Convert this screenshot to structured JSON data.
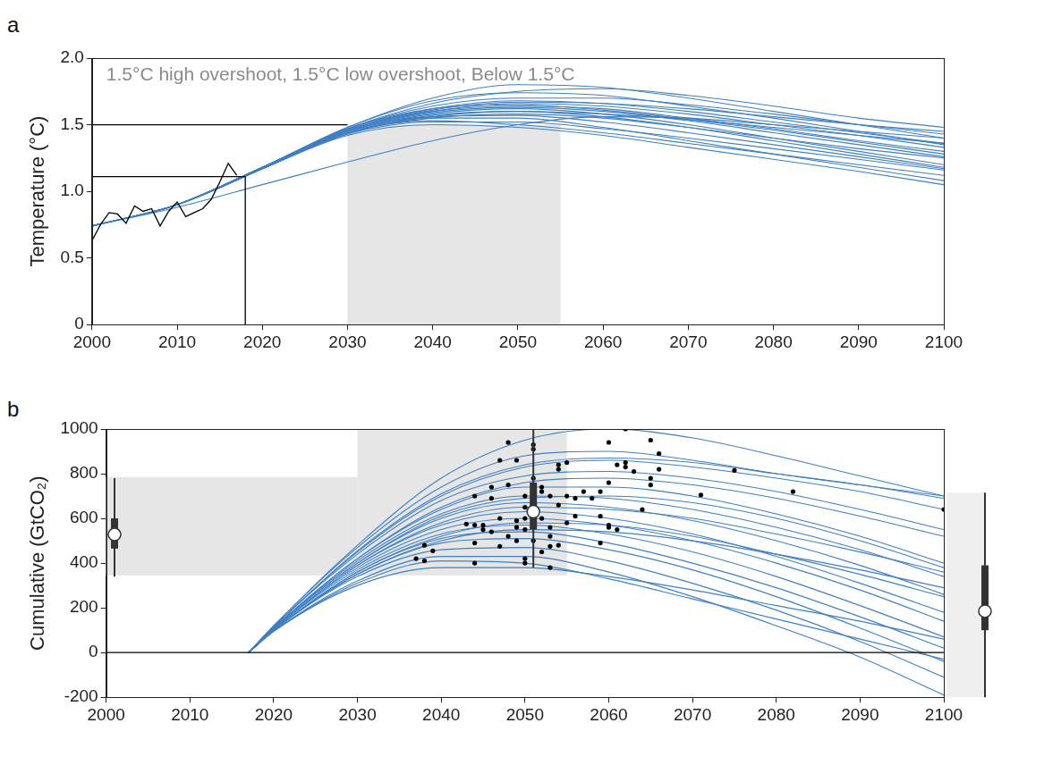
{
  "chart_data": [
    {
      "panel": "a",
      "type": "line",
      "annotation": "1.5°C high overshoot, 1.5°C low overshoot, Below 1.5°C",
      "y_label": "Temperature (°C)",
      "xlim": [
        2000,
        2100
      ],
      "xticks": [
        2000,
        2010,
        2020,
        2030,
        2040,
        2050,
        2060,
        2070,
        2080,
        2090,
        2100
      ],
      "ylim": [
        0,
        2
      ],
      "yticks": [
        0,
        0.5,
        {
          "value": 1,
          "label": "1.0"
        },
        1.5,
        {
          "value": 2,
          "label": "2.0"
        }
      ],
      "grid": false,
      "color": "#3f7fc2",
      "bands": [
        {
          "x": [
            2030,
            2055
          ],
          "y": [
            0,
            1.5
          ]
        }
      ],
      "x": [
        2000,
        2010,
        2020,
        2030,
        2040,
        2050,
        2060,
        2070,
        2080,
        2090,
        2100
      ],
      "series": [
        {
          "values": [
            0.74,
            0.9,
            1.18,
            1.48,
            1.7,
            1.8,
            1.78,
            1.7,
            1.6,
            1.5,
            1.4
          ]
        },
        {
          "values": [
            0.74,
            0.9,
            1.18,
            1.47,
            1.66,
            1.75,
            1.77,
            1.72,
            1.64,
            1.55,
            1.48
          ]
        },
        {
          "values": [
            0.74,
            0.9,
            1.18,
            1.46,
            1.62,
            1.68,
            1.66,
            1.6,
            1.52,
            1.44,
            1.36
          ]
        },
        {
          "values": [
            0.74,
            0.9,
            1.18,
            1.46,
            1.6,
            1.64,
            1.62,
            1.55,
            1.47,
            1.38,
            1.3
          ]
        },
        {
          "values": [
            0.74,
            0.9,
            1.17,
            1.45,
            1.58,
            1.62,
            1.58,
            1.5,
            1.4,
            1.3,
            1.2
          ]
        },
        {
          "values": [
            0.74,
            0.9,
            1.17,
            1.44,
            1.55,
            1.58,
            1.55,
            1.48,
            1.4,
            1.32,
            1.25
          ]
        },
        {
          "values": [
            0.74,
            0.9,
            1.17,
            1.43,
            1.52,
            1.52,
            1.47,
            1.4,
            1.32,
            1.24,
            1.16
          ]
        },
        {
          "values": [
            0.74,
            0.9,
            1.17,
            1.42,
            1.5,
            1.48,
            1.42,
            1.33,
            1.24,
            1.15,
            1.05
          ]
        },
        {
          "values": [
            0.74,
            0.9,
            1.17,
            1.43,
            1.55,
            1.55,
            1.48,
            1.38,
            1.28,
            1.18,
            1.08
          ]
        },
        {
          "values": [
            0.74,
            0.9,
            1.18,
            1.47,
            1.64,
            1.7,
            1.7,
            1.65,
            1.58,
            1.5,
            1.43
          ]
        },
        {
          "values": [
            0.74,
            0.9,
            1.18,
            1.46,
            1.6,
            1.66,
            1.64,
            1.58,
            1.5,
            1.42,
            1.33
          ]
        },
        {
          "values": [
            0.74,
            0.9,
            1.17,
            1.45,
            1.57,
            1.6,
            1.56,
            1.48,
            1.38,
            1.28,
            1.18
          ]
        },
        {
          "values": [
            0.74,
            0.9,
            1.18,
            1.48,
            1.68,
            1.74,
            1.72,
            1.64,
            1.55,
            1.45,
            1.35
          ]
        },
        {
          "values": [
            0.74,
            0.9,
            1.17,
            1.44,
            1.56,
            1.6,
            1.58,
            1.54,
            1.48,
            1.42,
            1.36
          ]
        },
        {
          "values": [
            0.74,
            0.9,
            1.17,
            1.45,
            1.59,
            1.63,
            1.6,
            1.53,
            1.44,
            1.35,
            1.26
          ]
        },
        {
          "values": [
            0.74,
            0.88,
            1.05,
            1.22,
            1.38,
            1.5,
            1.56,
            1.55,
            1.5,
            1.45,
            1.4
          ]
        },
        {
          "values": [
            0.74,
            0.9,
            1.17,
            1.44,
            1.53,
            1.5,
            1.44,
            1.36,
            1.28,
            1.2,
            1.12
          ]
        },
        {
          "values": [
            0.74,
            0.9,
            1.18,
            1.47,
            1.62,
            1.65,
            1.61,
            1.54,
            1.46,
            1.37,
            1.28
          ]
        },
        {
          "values": [
            0.74,
            0.9,
            1.17,
            1.45,
            1.56,
            1.57,
            1.52,
            1.44,
            1.35,
            1.26,
            1.17
          ]
        },
        {
          "values": [
            0.74,
            0.9,
            1.18,
            1.46,
            1.61,
            1.67,
            1.66,
            1.62,
            1.56,
            1.5,
            1.45
          ]
        },
        {
          "color": "#000000",
          "x": [
            2000,
            2001,
            2002,
            2003,
            2004,
            2005,
            2006,
            2007,
            2008,
            2009,
            2010,
            2011,
            2012,
            2013,
            2014,
            2015,
            2016,
            2017
          ],
          "values": [
            0.63,
            0.75,
            0.84,
            0.83,
            0.76,
            0.89,
            0.85,
            0.87,
            0.74,
            0.85,
            0.92,
            0.81,
            0.84,
            0.87,
            0.94,
            1.07,
            1.21,
            1.12
          ]
        },
        {
          "color": "#000000",
          "x": [
            2000,
            2030
          ],
          "values": [
            1.5,
            1.5
          ]
        },
        {
          "color": "#000000",
          "x": [
            2000,
            2018
          ],
          "values": [
            1.11,
            1.11
          ]
        },
        {
          "color": "#000000",
          "x": [
            2018,
            2018
          ],
          "values": [
            0,
            1.11
          ]
        }
      ]
    },
    {
      "panel": "b",
      "type": "line",
      "y_label": "Cumulative (GtCO₂)",
      "xlim": [
        2000,
        2100
      ],
      "xticks": [
        2000,
        2010,
        2020,
        2030,
        2040,
        2050,
        2060,
        2070,
        2080,
        2090,
        2100
      ],
      "ylim": [
        -200,
        1000
      ],
      "yticks": [
        -200,
        0,
        200,
        400,
        600,
        800,
        1000
      ],
      "grid": false,
      "color": "#3f7fc2",
      "bands": [
        {
          "x": [
            2000,
            2030
          ],
          "y": [
            345,
            785
          ]
        },
        {
          "x": [
            2030,
            2055
          ],
          "y": [
            345,
            1000
          ]
        }
      ],
      "boxes": [
        {
          "x": 2001,
          "low": 340,
          "q1": 465,
          "median": 528,
          "q3": 600,
          "high": 780
        },
        {
          "x": 2051,
          "low": 380,
          "q1": 550,
          "median": 630,
          "q3": 760,
          "high": 1000
        }
      ],
      "end_box": {
        "low": -200,
        "q1": 100,
        "median": 185,
        "q3": 390,
        "high": 715
      },
      "x": [
        2017,
        2020,
        2030,
        2040,
        2050,
        2060,
        2070,
        2080,
        2090,
        2100
      ],
      "series": [
        {
          "values": [
            0,
            120,
            480,
            780,
            950,
            1000,
            960,
            880,
            790,
            700
          ]
        },
        {
          "values": [
            0,
            120,
            470,
            740,
            880,
            900,
            860,
            800,
            750,
            700
          ]
        },
        {
          "values": [
            0,
            115,
            450,
            700,
            830,
            860,
            830,
            780,
            720,
            640
          ]
        },
        {
          "values": [
            0,
            115,
            440,
            680,
            790,
            810,
            780,
            720,
            640,
            550
          ]
        },
        {
          "values": [
            0,
            110,
            420,
            640,
            740,
            740,
            700,
            620,
            520,
            400
          ]
        },
        {
          "values": [
            0,
            110,
            410,
            620,
            700,
            690,
            640,
            560,
            460,
            340
          ]
        },
        {
          "values": [
            0,
            110,
            400,
            600,
            670,
            650,
            590,
            500,
            390,
            260
          ]
        },
        {
          "values": [
            0,
            105,
            390,
            570,
            630,
            600,
            530,
            430,
            310,
            180
          ]
        },
        {
          "values": [
            0,
            105,
            380,
            550,
            600,
            570,
            500,
            400,
            280,
            140
          ]
        },
        {
          "values": [
            0,
            105,
            370,
            530,
            570,
            530,
            450,
            340,
            210,
            70
          ]
        },
        {
          "values": [
            0,
            100,
            360,
            510,
            540,
            490,
            400,
            290,
            160,
            20
          ]
        },
        {
          "values": [
            0,
            100,
            350,
            490,
            510,
            460,
            370,
            250,
            110,
            -40
          ]
        },
        {
          "values": [
            0,
            100,
            340,
            460,
            470,
            410,
            310,
            190,
            50,
            -110
          ]
        },
        {
          "values": [
            0,
            95,
            320,
            430,
            430,
            360,
            250,
            120,
            -20,
            -190
          ]
        },
        {
          "values": [
            0,
            95,
            310,
            410,
            400,
            330,
            240,
            150,
            60,
            -30
          ]
        },
        {
          "values": [
            0,
            100,
            360,
            520,
            580,
            570,
            520,
            440,
            350,
            250
          ]
        },
        {
          "values": [
            0,
            110,
            420,
            650,
            760,
            780,
            750,
            690,
            610,
            520
          ]
        },
        {
          "values": [
            0,
            105,
            390,
            580,
            650,
            640,
            600,
            530,
            450,
            360
          ]
        },
        {
          "values": [
            0,
            95,
            300,
            380,
            380,
            340,
            280,
            210,
            140,
            60
          ]
        },
        {
          "values": [
            0,
            115,
            455,
            710,
            840,
            870,
            850,
            800,
            750,
            690
          ]
        },
        {
          "values": [
            0,
            100,
            350,
            500,
            550,
            540,
            500,
            440,
            370,
            290
          ]
        },
        {
          "values": [
            0,
            110,
            400,
            610,
            690,
            700,
            670,
            600,
            500,
            380
          ]
        },
        {
          "color": "#000000",
          "x": [
            2000,
            2100
          ],
          "values": [
            0,
            0
          ]
        },
        {
          "type": "scatter",
          "color": "#000000",
          "marker": "circle",
          "x": [
            2037,
            2038,
            2038,
            2039,
            2043,
            2044,
            2044,
            2044,
            2044,
            2045,
            2045,
            2046,
            2046,
            2046,
            2047,
            2047,
            2047,
            2048,
            2048,
            2048,
            2049,
            2049,
            2049,
            2049,
            2050,
            2050,
            2050,
            2050,
            2050,
            2050,
            2051,
            2051,
            2051,
            2051,
            2051,
            2052,
            2052,
            2052,
            2052,
            2053,
            2053,
            2053,
            2053,
            2053,
            2054,
            2054,
            2054,
            2054,
            2055,
            2055,
            2055,
            2056,
            2056,
            2057,
            2058,
            2059,
            2059,
            2059,
            2060,
            2060,
            2060,
            2060,
            2061,
            2061,
            2062,
            2062,
            2062,
            2063,
            2064,
            2065,
            2065,
            2065,
            2066,
            2066,
            2071,
            2075,
            2082,
            2100
          ],
          "values": [
            420,
            410,
            480,
            455,
            575,
            400,
            490,
            570,
            700,
            550,
            570,
            540,
            690,
            740,
            475,
            600,
            860,
            520,
            750,
            940,
            500,
            560,
            590,
            860,
            400,
            420,
            550,
            600,
            650,
            700,
            500,
            690,
            780,
            910,
            930,
            450,
            600,
            720,
            740,
            380,
            475,
            520,
            560,
            700,
            480,
            660,
            820,
            840,
            580,
            700,
            850,
            610,
            690,
            720,
            690,
            490,
            610,
            720,
            560,
            570,
            760,
            940,
            550,
            840,
            830,
            850,
            1000,
            810,
            640,
            750,
            780,
            950,
            820,
            890,
            705,
            815,
            720,
            640
          ]
        }
      ]
    }
  ]
}
